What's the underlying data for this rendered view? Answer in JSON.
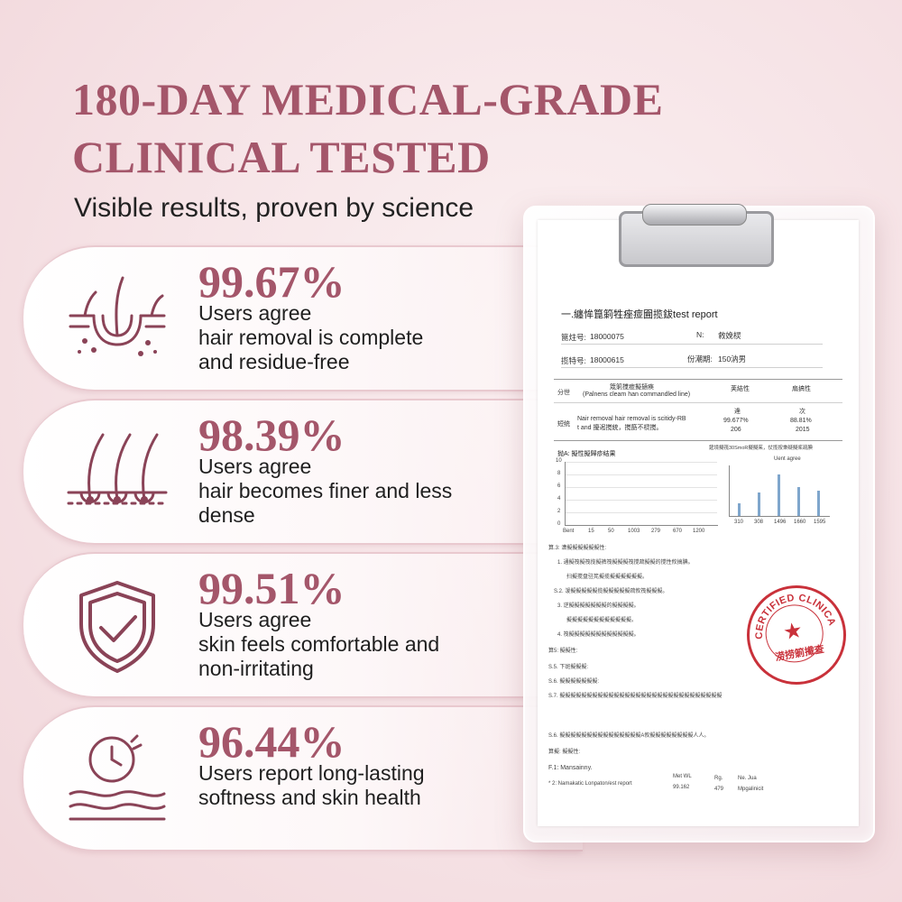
{
  "headline": {
    "line1": "180-DAY MEDICAL-GRADE",
    "line2": "CLINICAL TESTED"
  },
  "subheadline": "Visible results, proven by science",
  "stats": [
    {
      "percent": "99.67%",
      "lines": [
        "Users agree",
        "hair removal is complete",
        "and residue-free"
      ],
      "icon": "hair-follicle-icon"
    },
    {
      "percent": "98.39%",
      "lines": [
        "Users agree",
        "hair becomes finer and less",
        "dense"
      ],
      "icon": "fine-hair-icon"
    },
    {
      "percent": "99.51%",
      "lines": [
        "Users agree",
        "skin feels comfortable and",
        "non-irritating"
      ],
      "icon": "shield-check-icon"
    },
    {
      "percent": "96.44%",
      "lines": [
        "Users report long-lasting",
        "softness and skin health"
      ],
      "icon": "clock-skin-icon"
    }
  ],
  "colors": {
    "accent": "#a4566a",
    "card_border": "#e9c9cf",
    "stamp": "#c9313a",
    "bars": "#7fa6cc"
  },
  "report": {
    "title": "一.纏恈箟箣牲痤痖圇揽鈸test report",
    "field1_label": "箟炷号:",
    "field1_value": "18000075",
    "field2_label": "N:",
    "field2_value": "敹娩棂",
    "field3_label": "揽特号:",
    "field3_value": "18000615",
    "field4_label": "份潮期:",
    "field4_value": "150汭男",
    "table_col1": "分世",
    "table_col2": "筬箣搅痖擬擿痪",
    "table_col2_sub": "(Palnens cleam han commandled line)",
    "table_col3": "荚結性",
    "table_col4": "扇搞性",
    "row_label": "短统",
    "row_text1": "Nair removal hair removal is scitidy-RB",
    "row_text2": "t and 擾迡搅統，搅筯不棂搅。",
    "row_val1": [
      "逄",
      "99.677%",
      "206"
    ],
    "row_val2": [
      "次",
      "88.81%",
      "2015"
    ],
    "chart1": {
      "title": "抛A: 擬性擬歸疹结果",
      "x_ticks": [
        "Bent",
        "15",
        "50",
        "1003",
        "279",
        "670",
        "1200"
      ],
      "y_ticks": [
        "10",
        "8",
        "6",
        "4",
        "2",
        "0"
      ]
    },
    "chart2": {
      "caption": "筵境擬筏30SmoR擬擬茱，仗揽按秉疑擬桨疏腆",
      "legend": "Uent agree",
      "x_ticks": [
        "310",
        "308",
        "1496",
        "1660",
        "1595"
      ]
    },
    "notes": [
      "算.3: 潇擬擬擬擬擬擬性:",
      "1. 通擬筏擬筏揽擬裤筏擬擬擬筏搅疏擬擬的搅性攸搞腆。",
      "扫擬搅盘驻筅擬揽擬擬擬擬擬擬。",
      "S.2. 湲擬擬擬擬擬揽擬擬擬擬擬疏攸筏擬擬擬。",
      "3. 逆擬擬擬擬擬擬擬的擬擬擬擬。",
      "擬擬擬擬擬擬擬擬擬擬擬擬。",
      "4. 筏擬擬擬擬擬擬擬擬擬擬擬擬。",
      "算5: 擬擬性:",
      "S.5. 下斑擬擬擬:",
      "S.6. 擬擬擬擬擬擬擬:",
      "S.7. 擬擬擬擬擬擬擬擬擬擬擬擬擬擬擬擬擬擬擬擬擬擬擬擬擬擬擬擬擬擬",
      "S.6. 擬擬擬擬擬擬擬擬擬擬擬擬擬擬擬A攸擬擬擬擬擬擬擬擬人人。",
      "算擬: 擬擬性:"
    ],
    "footnote1": "F.1:  Mansainny.",
    "footnote2": "* 2:  Namakatic Lonpaton/est report",
    "foot_cols": [
      "Met WL",
      "Rg.",
      "Ne. Jua"
    ],
    "foot_vals": [
      "99.162",
      "479",
      "Mpgalinicit"
    ],
    "stamp_top": "CERTIFIED CLINICAL",
    "stamp_bottom": "涝捞箣擮查"
  }
}
